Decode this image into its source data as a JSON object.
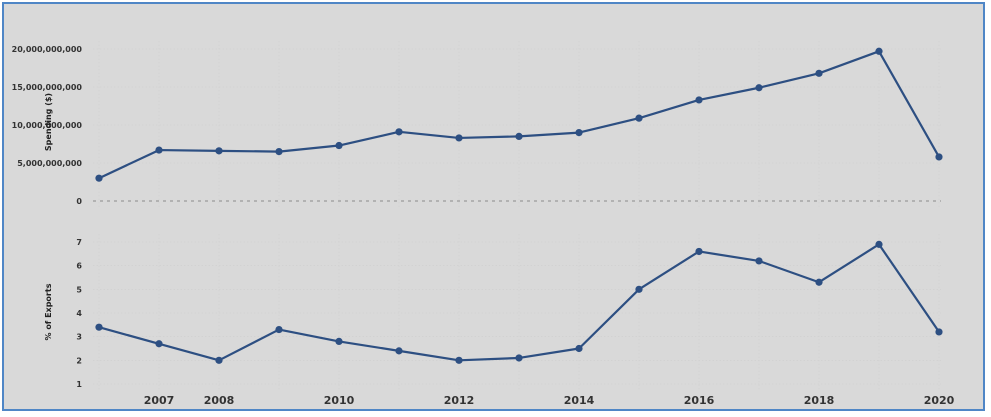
{
  "chart_data": [
    {
      "type": "line",
      "ylabel": "Spending ($)",
      "yticks": [
        "0",
        "5,000,000,000",
        "10,000,000,000",
        "15,000,000,000",
        "20,000,000,000"
      ],
      "ylim": [
        0,
        20000000000
      ],
      "x": [
        2006,
        2007,
        2008,
        2009,
        2010,
        2011,
        2012,
        2013,
        2014,
        2015,
        2016,
        2017,
        2018,
        2019,
        2020
      ],
      "series": [
        {
          "values": [
            3000000000,
            6700000000,
            6600000000,
            6500000000,
            7300000000,
            9100000000,
            8300000000,
            8500000000,
            9000000000,
            10900000000,
            13300000000,
            14900000000,
            16800000000,
            19700000000,
            5800000000
          ]
        }
      ],
      "zero_line": "dashed",
      "grid": true,
      "color": "#2d4f82"
    },
    {
      "type": "line",
      "ylabel": "% of Exports",
      "yticks": [
        "1",
        "2",
        "3",
        "4",
        "5",
        "6",
        "7"
      ],
      "ylim": [
        1,
        7
      ],
      "x": [
        2006,
        2007,
        2008,
        2009,
        2010,
        2011,
        2012,
        2013,
        2014,
        2015,
        2016,
        2017,
        2018,
        2019,
        2020
      ],
      "xticks": [
        "2007",
        "2008",
        "2010",
        "2012",
        "2014",
        "2016",
        "2018",
        "2020"
      ],
      "series": [
        {
          "values": [
            3.4,
            2.7,
            2.0,
            3.3,
            2.8,
            2.4,
            2.0,
            2.1,
            2.5,
            5.0,
            6.6,
            6.2,
            5.3,
            6.9,
            3.2
          ]
        }
      ],
      "grid": true,
      "color": "#2d4f82"
    }
  ]
}
